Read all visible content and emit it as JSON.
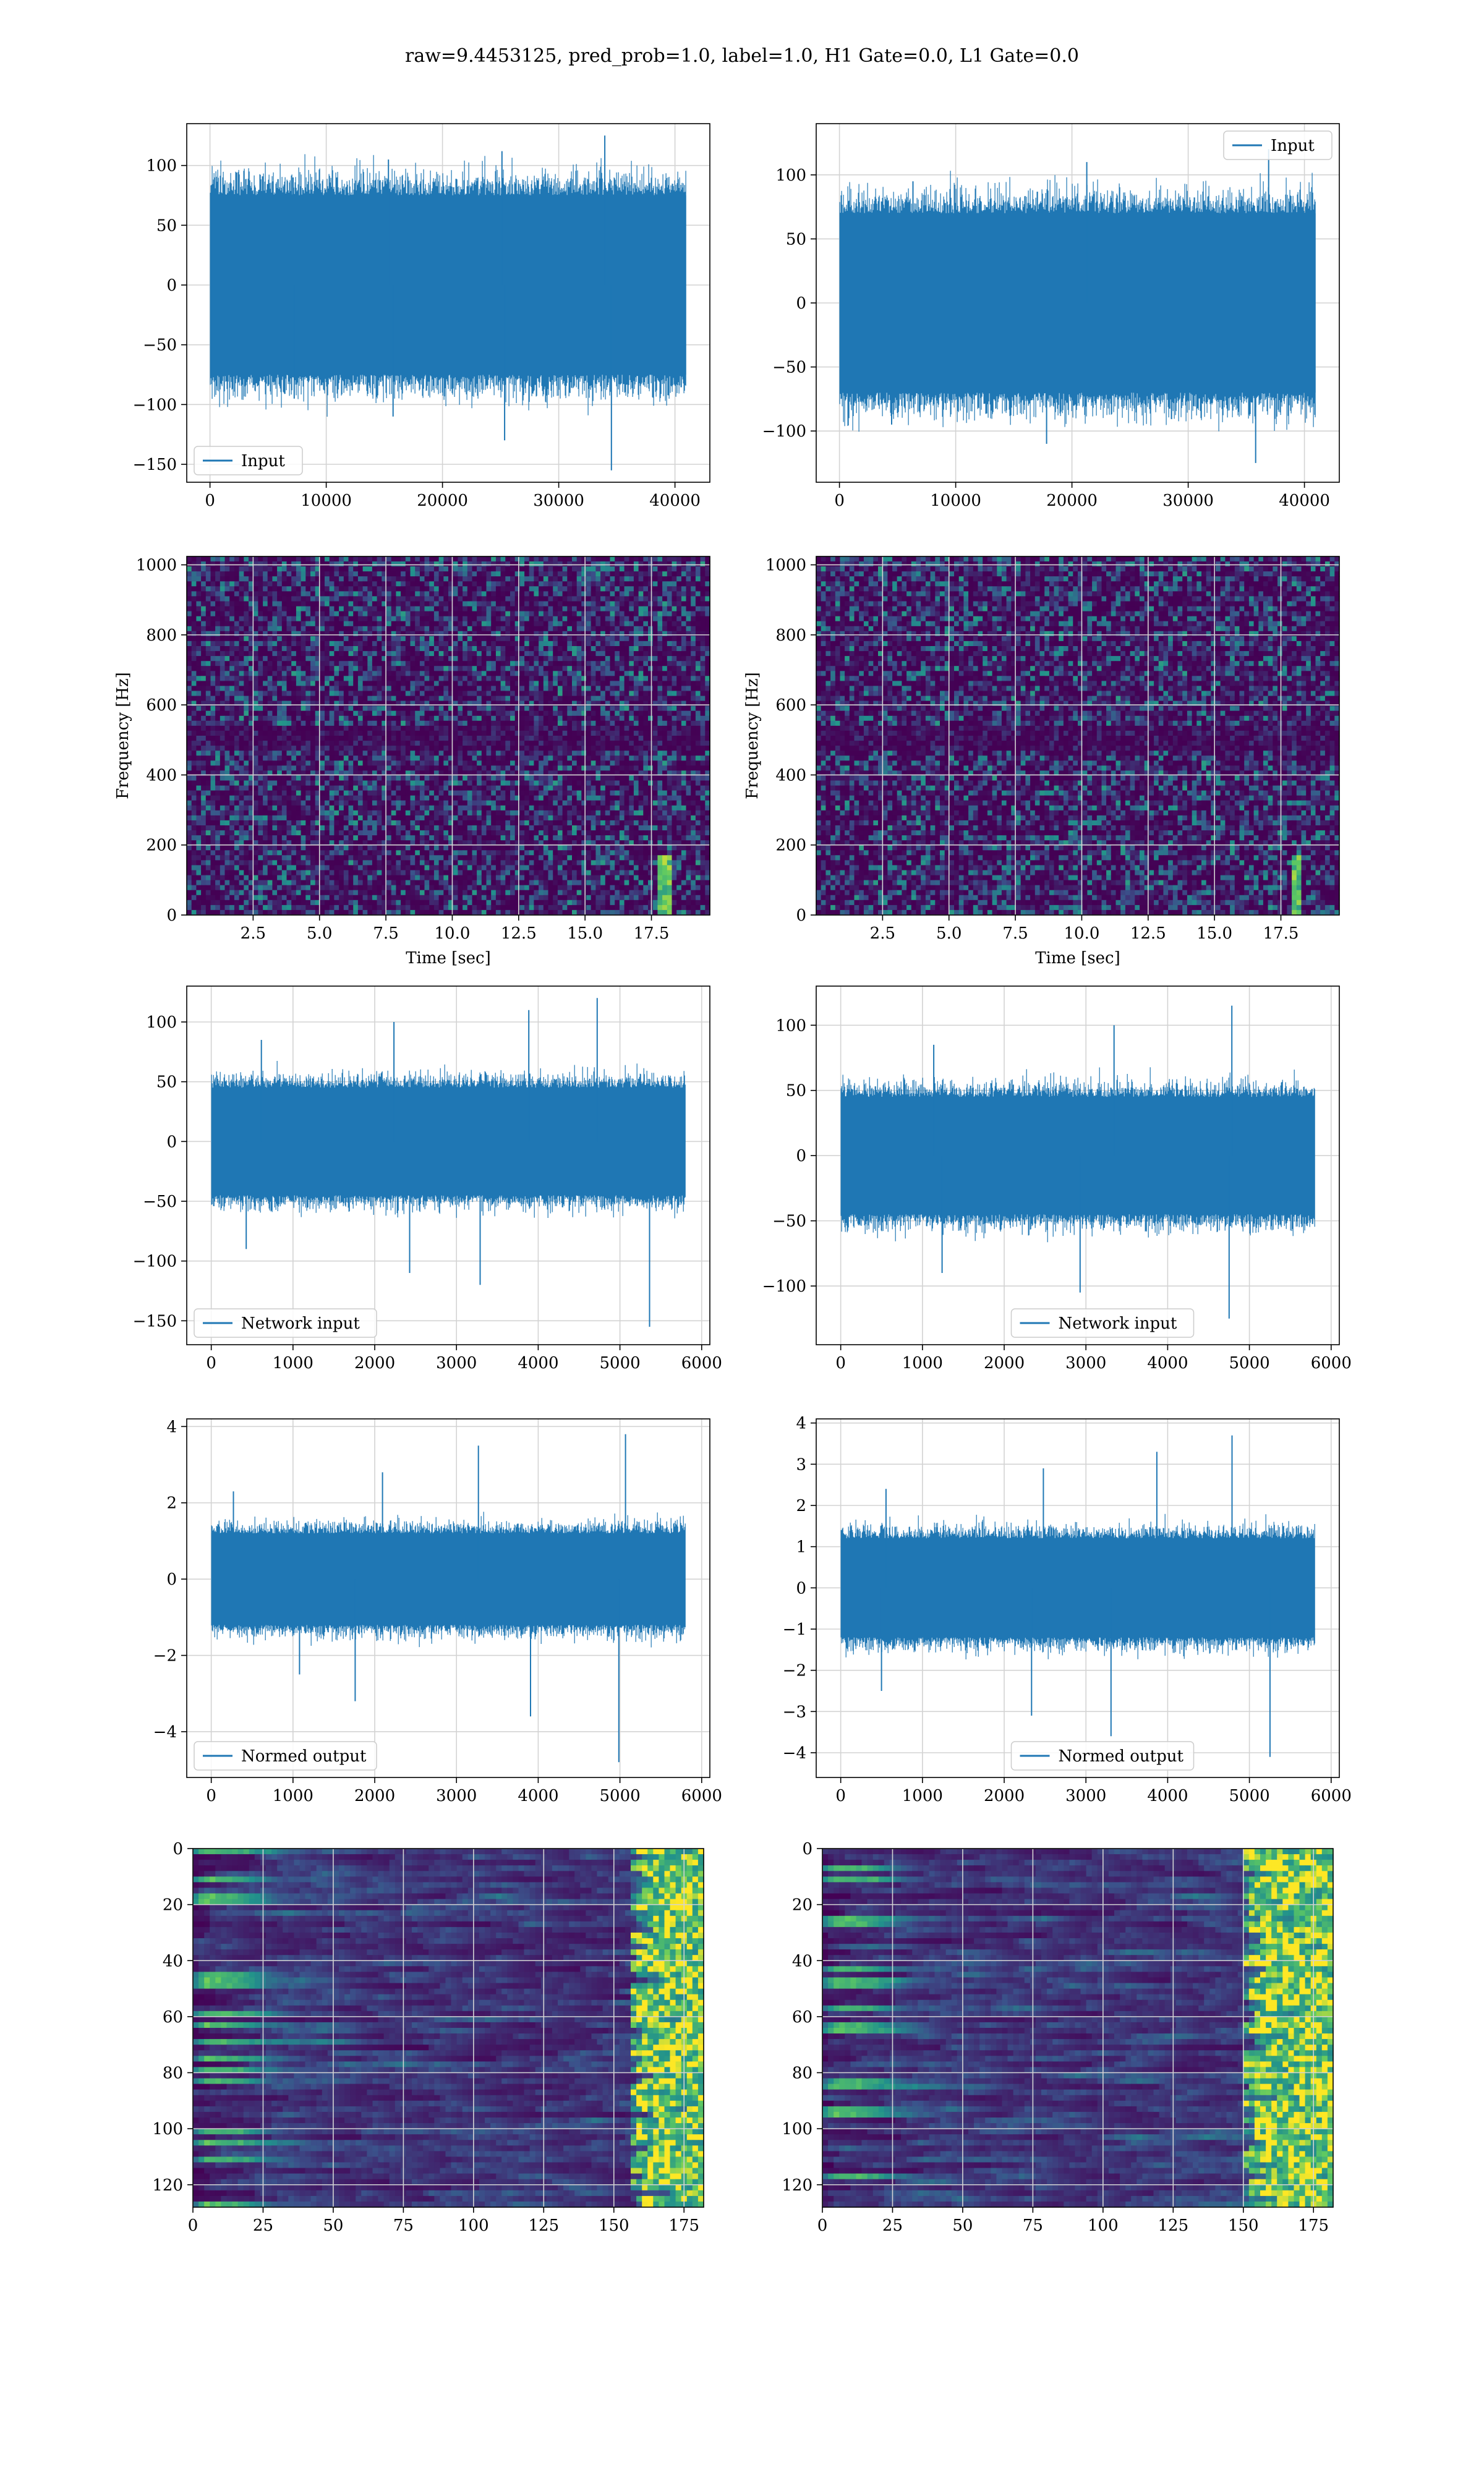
{
  "figure": {
    "title": "raw=9.4453125, pred_prob=1.0, label=1.0, H1 Gate=0.0, L1 Gate=0.0"
  },
  "colors": {
    "line": "#1f77b4",
    "grid": "#d3d3d3",
    "spine": "#000000",
    "viridis": [
      "#440154",
      "#3b528b",
      "#21918c",
      "#5ec962",
      "#fde725"
    ]
  },
  "chart_data": [
    {
      "id": "h1-input",
      "type": "line",
      "title": "",
      "xlabel": "",
      "ylabel": "",
      "xlim": [
        -2000,
        43000
      ],
      "ylim": [
        -165,
        135
      ],
      "xticks": [
        "0",
        "10000",
        "20000",
        "30000",
        "40000"
      ],
      "xtick_values": [
        0,
        10000,
        20000,
        30000,
        40000
      ],
      "yticks": [
        "−150",
        "−100",
        "−50",
        "0",
        "50",
        "100"
      ],
      "ytick_values": [
        -150,
        -100,
        -50,
        0,
        50,
        100
      ],
      "grid": true,
      "legend": "lower-left",
      "series": [
        {
          "name": "Input",
          "x_range": [
            0,
            40960
          ],
          "band": [
            -75,
            75
          ],
          "peaks_high": [
            90,
            105,
            112,
            125
          ],
          "peaks_low": [
            -95,
            -110,
            -130,
            -155
          ]
        }
      ]
    },
    {
      "id": "l1-input",
      "type": "line",
      "title": "",
      "xlabel": "",
      "ylabel": "",
      "xlim": [
        -2000,
        43000
      ],
      "ylim": [
        -140,
        140
      ],
      "xticks": [
        "0",
        "10000",
        "20000",
        "30000",
        "40000"
      ],
      "xtick_values": [
        0,
        10000,
        20000,
        30000,
        40000
      ],
      "yticks": [
        "−100",
        "−50",
        "0",
        "50",
        "100"
      ],
      "ytick_values": [
        -100,
        -50,
        0,
        50,
        100
      ],
      "grid": true,
      "legend": "upper-right",
      "series": [
        {
          "name": "Input",
          "x_range": [
            0,
            40960
          ],
          "band": [
            -70,
            70
          ],
          "peaks_high": [
            95,
            110,
            120
          ],
          "peaks_low": [
            -95,
            -110,
            -125
          ]
        }
      ]
    },
    {
      "id": "h1-spectrogram",
      "type": "heatmap",
      "title": "",
      "xlabel": "Time [sec]",
      "ylabel": "Frequency [Hz]",
      "xlim": [
        0,
        19.7
      ],
      "ylim": [
        0,
        1024
      ],
      "xticks": [
        "2.5",
        "5.0",
        "7.5",
        "10.0",
        "12.5",
        "15.0",
        "17.5"
      ],
      "xtick_values": [
        2.5,
        5.0,
        7.5,
        10.0,
        12.5,
        15.0,
        17.5
      ],
      "yticks": [
        "0",
        "200",
        "400",
        "600",
        "800",
        "1000"
      ],
      "ytick_values": [
        0,
        200,
        400,
        600,
        800,
        1000
      ],
      "grid": true,
      "colormap": "viridis",
      "chirp_time": 17.9
    },
    {
      "id": "l1-spectrogram",
      "type": "heatmap",
      "title": "",
      "xlabel": "Time [sec]",
      "ylabel": "Frequency [Hz]",
      "xlim": [
        0,
        19.7
      ],
      "ylim": [
        0,
        1024
      ],
      "xticks": [
        "2.5",
        "5.0",
        "7.5",
        "10.0",
        "12.5",
        "15.0",
        "17.5"
      ],
      "xtick_values": [
        2.5,
        5.0,
        7.5,
        10.0,
        12.5,
        15.0,
        17.5
      ],
      "yticks": [
        "0",
        "200",
        "400",
        "600",
        "800",
        "1000"
      ],
      "ytick_values": [
        0,
        200,
        400,
        600,
        800,
        1000
      ],
      "grid": true,
      "colormap": "viridis",
      "chirp_time": 18.0
    },
    {
      "id": "h1-network-input",
      "type": "line",
      "title": "",
      "xlabel": "",
      "ylabel": "",
      "xlim": [
        -300,
        6100
      ],
      "ylim": [
        -170,
        130
      ],
      "xticks": [
        "0",
        "1000",
        "2000",
        "3000",
        "4000",
        "5000",
        "6000"
      ],
      "xtick_values": [
        0,
        1000,
        2000,
        3000,
        4000,
        5000,
        6000
      ],
      "yticks": [
        "−150",
        "−100",
        "−50",
        "0",
        "50",
        "100"
      ],
      "ytick_values": [
        -150,
        -100,
        -50,
        0,
        50,
        100
      ],
      "grid": true,
      "legend": "lower-left",
      "series": [
        {
          "name": "Network input",
          "x_range": [
            0,
            5800
          ],
          "band": [
            -45,
            45
          ],
          "peaks_high": [
            85,
            100,
            110,
            120
          ],
          "peaks_low": [
            -90,
            -110,
            -120,
            -155
          ]
        }
      ]
    },
    {
      "id": "l1-network-input",
      "type": "line",
      "title": "",
      "xlabel": "",
      "ylabel": "",
      "xlim": [
        -300,
        6100
      ],
      "ylim": [
        -145,
        130
      ],
      "xticks": [
        "0",
        "1000",
        "2000",
        "3000",
        "4000",
        "5000",
        "6000"
      ],
      "xtick_values": [
        0,
        1000,
        2000,
        3000,
        4000,
        5000,
        6000
      ],
      "yticks": [
        "−100",
        "−50",
        "0",
        "50",
        "100"
      ],
      "ytick_values": [
        -100,
        -50,
        0,
        50,
        100
      ],
      "grid": true,
      "legend": "lower-center",
      "series": [
        {
          "name": "Network input",
          "x_range": [
            0,
            5800
          ],
          "band": [
            -45,
            45
          ],
          "peaks_high": [
            85,
            100,
            115
          ],
          "peaks_low": [
            -90,
            -105,
            -125
          ]
        }
      ]
    },
    {
      "id": "h1-normed-output",
      "type": "line",
      "title": "",
      "xlabel": "",
      "ylabel": "",
      "xlim": [
        -300,
        6100
      ],
      "ylim": [
        -5.2,
        4.2
      ],
      "xticks": [
        "0",
        "1000",
        "2000",
        "3000",
        "4000",
        "5000",
        "6000"
      ],
      "xtick_values": [
        0,
        1000,
        2000,
        3000,
        4000,
        5000,
        6000
      ],
      "yticks": [
        "−4",
        "−2",
        "0",
        "2",
        "4"
      ],
      "ytick_values": [
        -4,
        -2,
        0,
        2,
        4
      ],
      "grid": true,
      "legend": "lower-left",
      "series": [
        {
          "name": "Normed output",
          "x_range": [
            0,
            5800
          ],
          "band": [
            -1.2,
            1.2
          ],
          "peaks_high": [
            2.3,
            2.8,
            3.5,
            3.8
          ],
          "peaks_low": [
            -2.5,
            -3.2,
            -3.6,
            -4.8
          ]
        }
      ]
    },
    {
      "id": "l1-normed-output",
      "type": "line",
      "title": "",
      "xlabel": "",
      "ylabel": "",
      "xlim": [
        -300,
        6100
      ],
      "ylim": [
        -4.6,
        4.1
      ],
      "xticks": [
        "0",
        "1000",
        "2000",
        "3000",
        "4000",
        "5000",
        "6000"
      ],
      "xtick_values": [
        0,
        1000,
        2000,
        3000,
        4000,
        5000,
        6000
      ],
      "yticks": [
        "−4",
        "−3",
        "−2",
        "−1",
        "0",
        "1",
        "2",
        "3",
        "4"
      ],
      "ytick_values": [
        -4,
        -3,
        -2,
        -1,
        0,
        1,
        2,
        3,
        4
      ],
      "grid": true,
      "legend": "lower-center",
      "series": [
        {
          "name": "Normed output",
          "x_range": [
            0,
            5800
          ],
          "band": [
            -1.2,
            1.2
          ],
          "peaks_high": [
            2.4,
            2.9,
            3.3,
            3.7
          ],
          "peaks_low": [
            -2.5,
            -3.1,
            -3.6,
            -4.1
          ]
        }
      ]
    },
    {
      "id": "h1-activation-map",
      "type": "heatmap",
      "title": "",
      "xlabel": "",
      "ylabel": "",
      "xlim": [
        0,
        182
      ],
      "ylim": [
        128,
        0
      ],
      "xticks": [
        "0",
        "25",
        "50",
        "75",
        "100",
        "125",
        "150",
        "175"
      ],
      "xtick_values": [
        0,
        25,
        50,
        75,
        100,
        125,
        150,
        175
      ],
      "yticks": [
        "0",
        "20",
        "40",
        "60",
        "80",
        "100",
        "120"
      ],
      "ytick_values": [
        0,
        20,
        40,
        60,
        80,
        100,
        120
      ],
      "grid": true,
      "colormap": "viridis",
      "bright_region_start": 155
    },
    {
      "id": "l1-activation-map",
      "type": "heatmap",
      "title": "",
      "xlabel": "",
      "ylabel": "",
      "xlim": [
        0,
        182
      ],
      "ylim": [
        128,
        0
      ],
      "xticks": [
        "0",
        "25",
        "50",
        "75",
        "100",
        "125",
        "150",
        "175"
      ],
      "xtick_values": [
        0,
        25,
        50,
        75,
        100,
        125,
        150,
        175
      ],
      "yticks": [
        "0",
        "20",
        "40",
        "60",
        "80",
        "100",
        "120"
      ],
      "ytick_values": [
        0,
        20,
        40,
        60,
        80,
        100,
        120
      ],
      "grid": true,
      "colormap": "viridis",
      "bright_region_start": 148
    }
  ]
}
